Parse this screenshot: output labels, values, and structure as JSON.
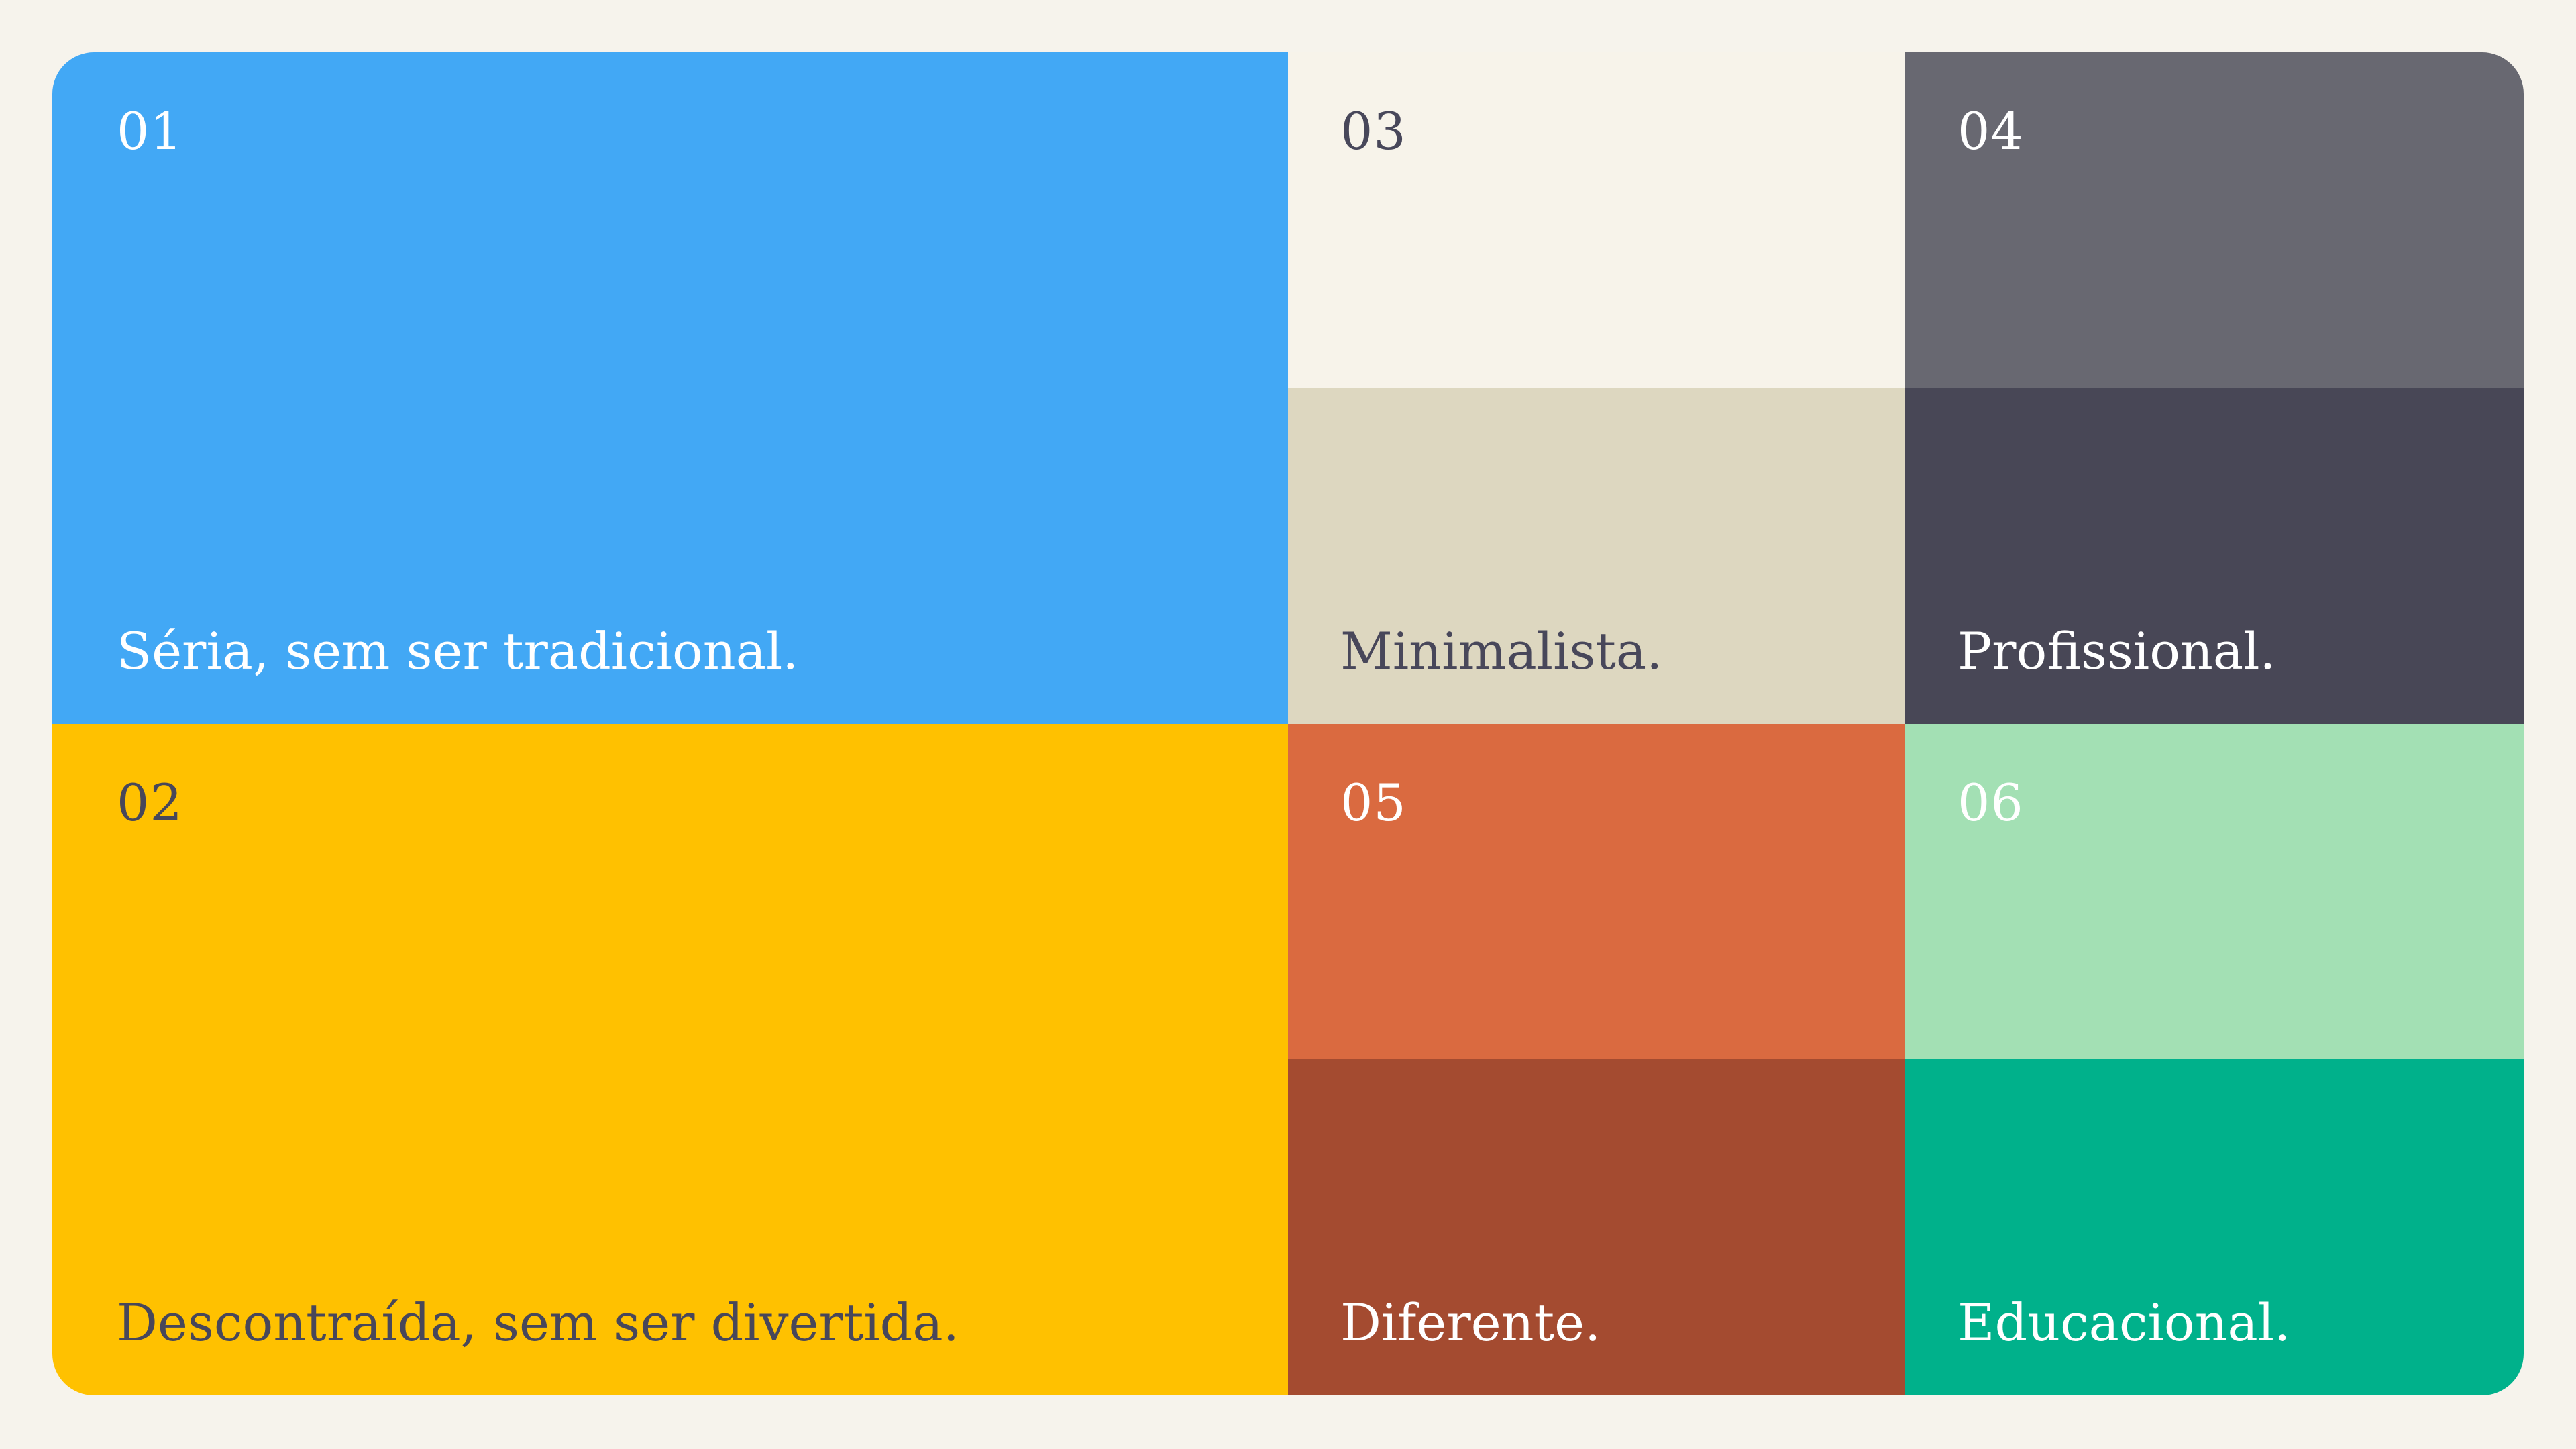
{
  "tiles": [
    {
      "number": "01",
      "label": "Séria, sem ser tradicional.",
      "colors": {
        "top": "#42a8f5",
        "bottom": "#42a8f5",
        "text": "#ffffff"
      }
    },
    {
      "number": "02",
      "label": "Descontraída, sem ser divertida.",
      "colors": {
        "top": "#ffc100",
        "bottom": "#ffc100",
        "text": "#48475a"
      }
    },
    {
      "number": "03",
      "label": "Minimalista.",
      "colors": {
        "top": "#f7f3ea",
        "bottom": "#ddd7c0",
        "text": "#48475a"
      }
    },
    {
      "number": "04",
      "label": "Profissional.",
      "colors": {
        "top": "#686871",
        "bottom": "#484756",
        "text": "#ffffff"
      }
    },
    {
      "number": "05",
      "label": "Diferente.",
      "colors": {
        "top": "#da6a40",
        "bottom": "#a44b30",
        "text": "#ffffff"
      }
    },
    {
      "number": "06",
      "label": "Educacional.",
      "colors": {
        "top": "#a3e0b4",
        "bottom": "#00b18b",
        "text": "#ffffff"
      }
    }
  ]
}
